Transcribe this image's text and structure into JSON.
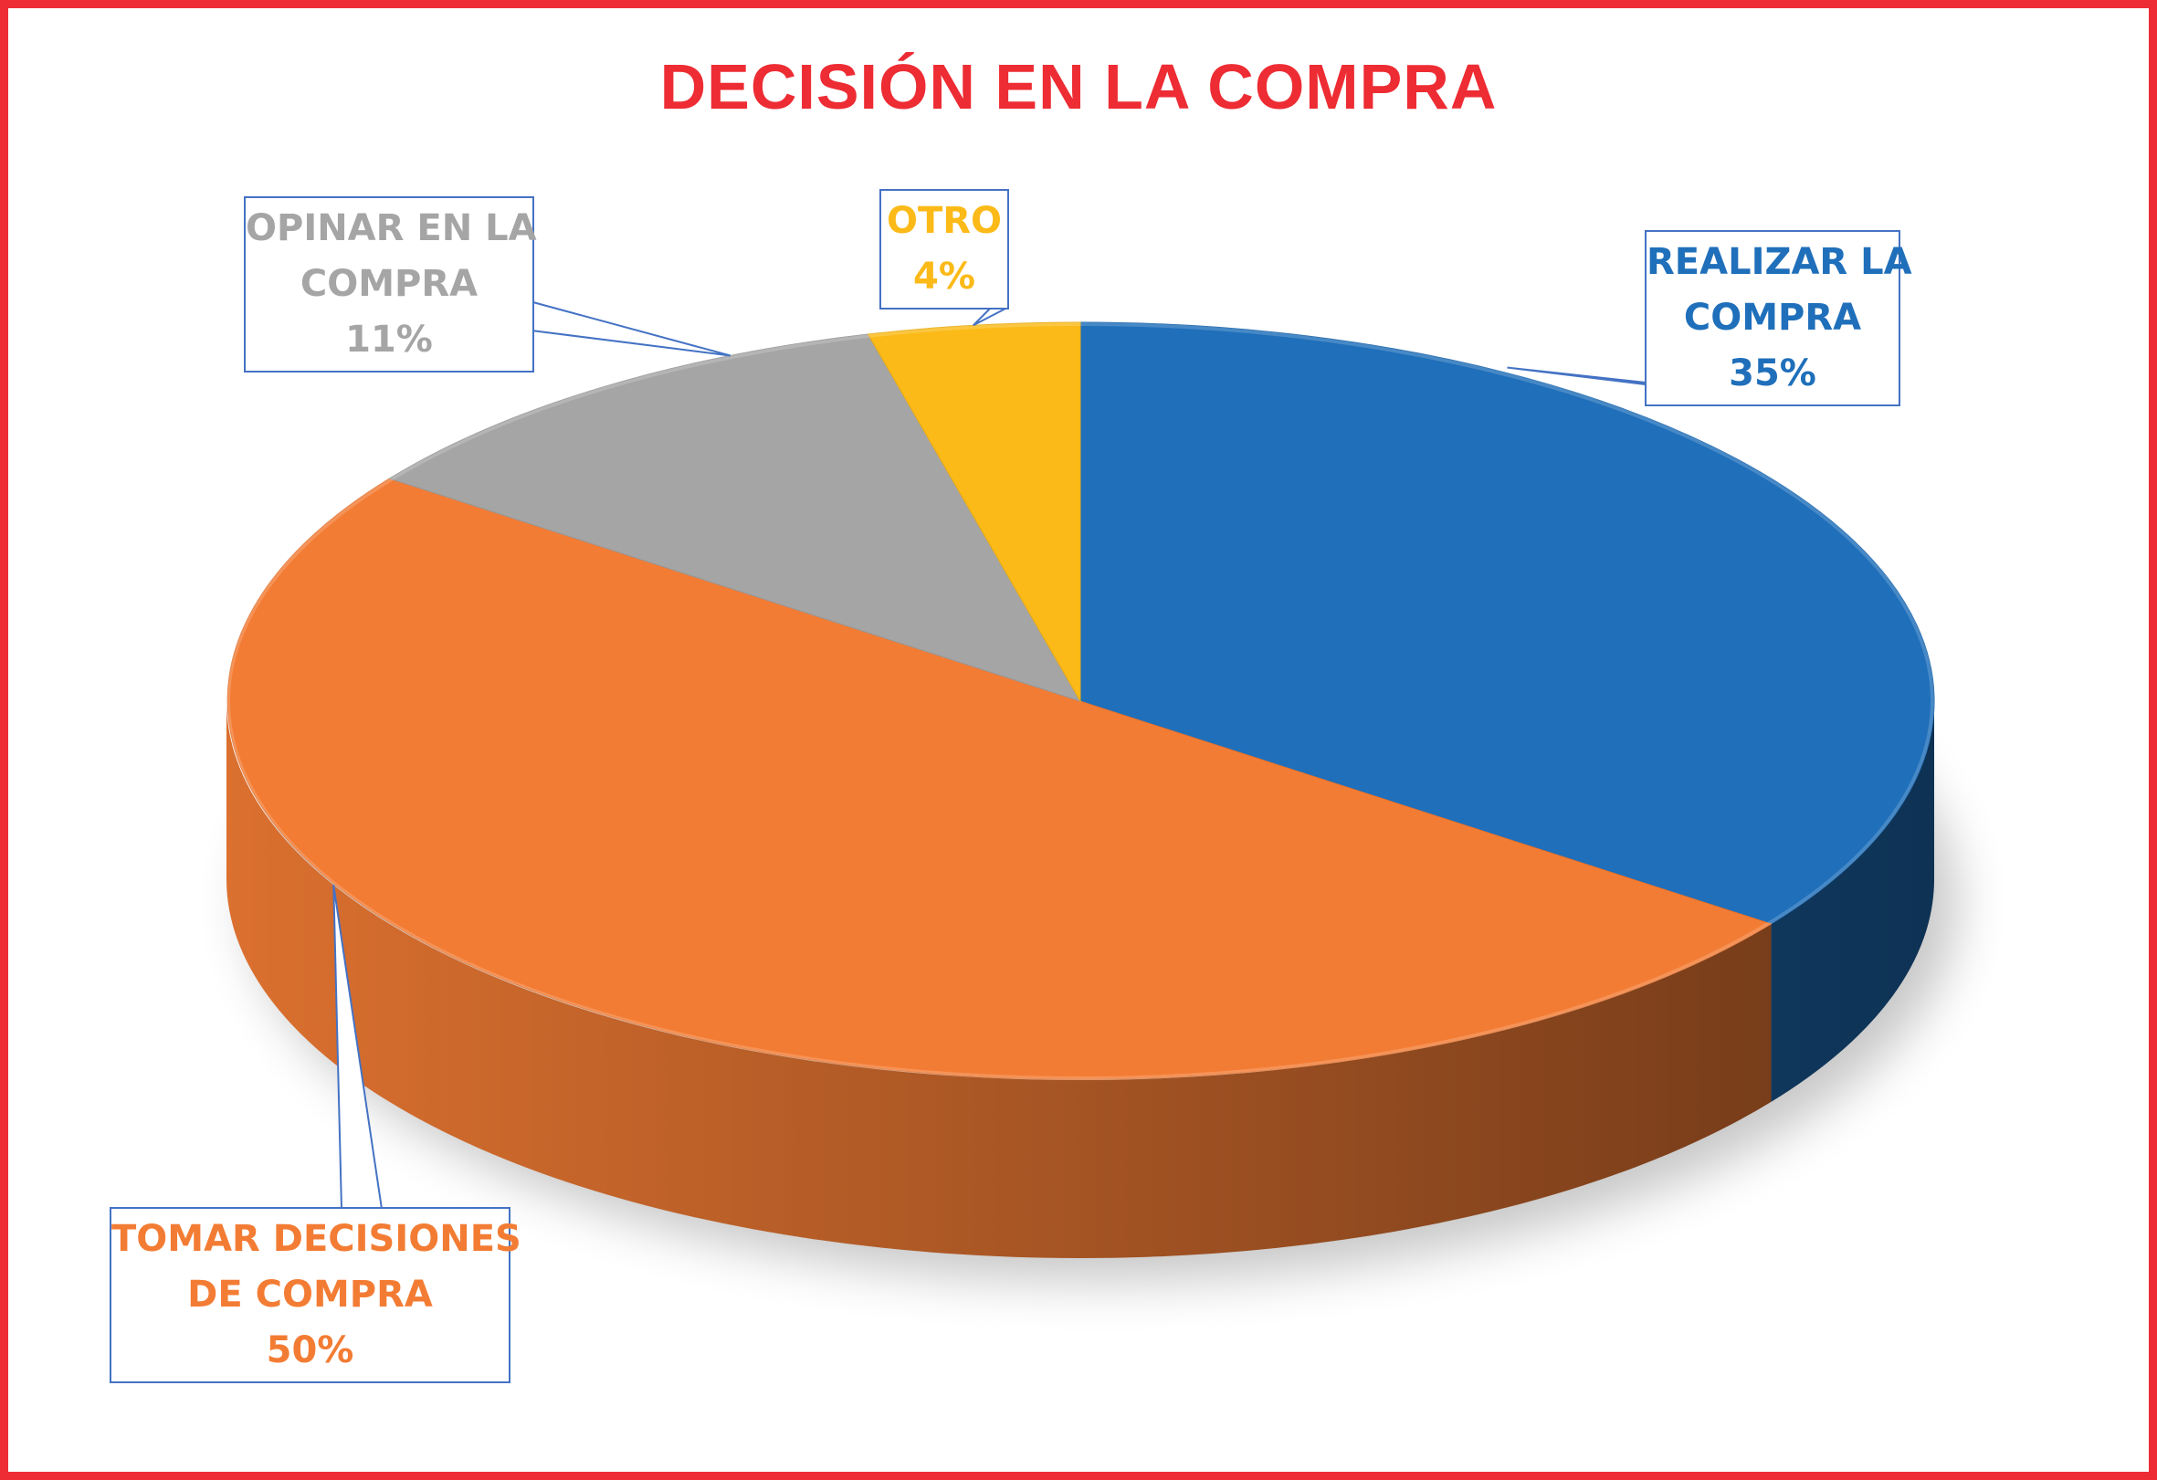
{
  "chart_data": {
    "type": "pie",
    "title": "DECISIÓN EN LA COMPRA",
    "categories": [
      "REALIZAR LA COMPRA",
      "TOMAR DECISIONES DE COMPRA",
      "OPINAR EN LA COMPRA",
      "OTRO"
    ],
    "values": [
      35,
      50,
      11,
      4
    ],
    "value_labels": [
      "35%",
      "50%",
      "11%",
      "4%"
    ],
    "label_lines": [
      [
        "REALIZAR LA",
        "COMPRA",
        "35%"
      ],
      [
        "TOMAR DECISIONES",
        "DE COMPRA",
        "50%"
      ],
      [
        "OPINAR EN LA",
        "COMPRA",
        "11%"
      ],
      [
        "OTRO",
        "4%"
      ]
    ],
    "colors": [
      "#1f6fba",
      "#f37c34",
      "#a5a5a5",
      "#fbba17"
    ],
    "label_text_colors": [
      "#1f6fba",
      "#f37c34",
      "#a5a5a5",
      "#fbba17"
    ],
    "title_color": "#ed2c33",
    "border_color": "#ed2c33",
    "label_border_color": "#4472c4",
    "legend": "none",
    "style": "3d"
  }
}
